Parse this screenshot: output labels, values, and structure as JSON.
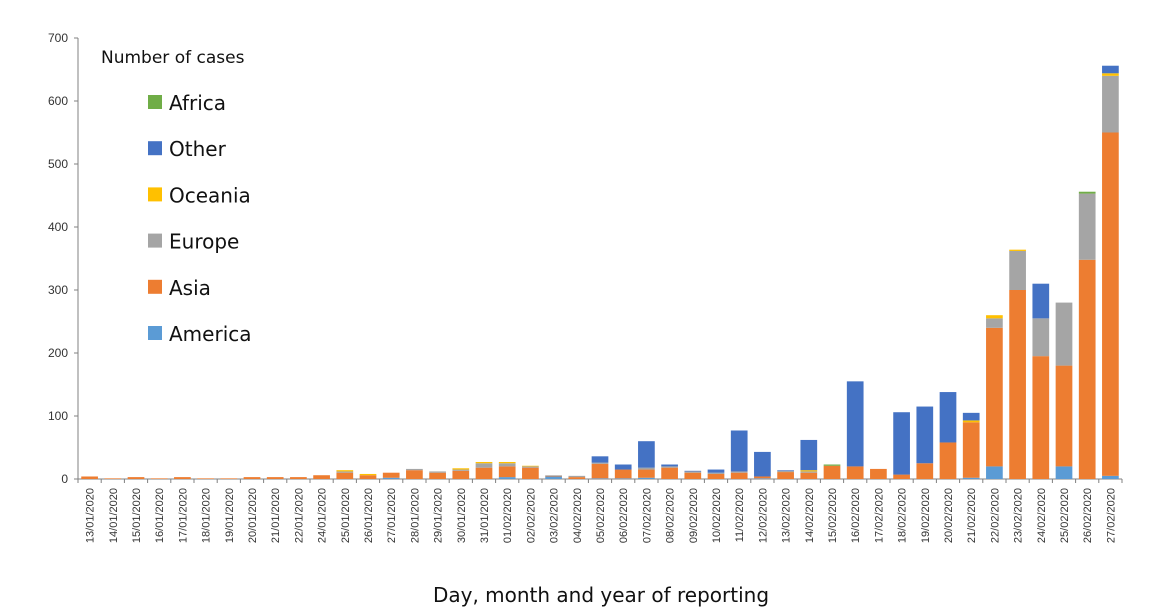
{
  "chart_data": {
    "type": "bar",
    "stacked": true,
    "xlabel": "Day, month and year of reporting",
    "legend_title": "Number of cases",
    "ylim": [
      0,
      700
    ],
    "yticks": [
      0,
      100,
      200,
      300,
      400,
      500,
      600,
      700
    ],
    "grid": false,
    "legend_placement": "top-left",
    "categories": [
      "13/01/2020",
      "14/01/2020",
      "15/01/2020",
      "16/01/2020",
      "17/01/2020",
      "18/01/2020",
      "19/01/2020",
      "20/01/2020",
      "21/01/2020",
      "22/01/2020",
      "24/01/2020",
      "25/01/2020",
      "26/01/2020",
      "27/01/2020",
      "28/01/2020",
      "29/01/2020",
      "30/01/2020",
      "31/01/2020",
      "01/02/2020",
      "02/02/2020",
      "03/02/2020",
      "04/02/2020",
      "05/02/2020",
      "06/02/2020",
      "07/02/2020",
      "08/02/2020",
      "09/02/2020",
      "10/02/2020",
      "11/02/2020",
      "12/02/2020",
      "13/02/2020",
      "14/02/2020",
      "15/02/2020",
      "16/02/2020",
      "17/02/2020",
      "18/02/2020",
      "19/02/2020",
      "20/02/2020",
      "21/02/2020",
      "22/02/2020",
      "23/02/2020",
      "24/02/2020",
      "25/02/2020",
      "26/02/2020",
      "27/02/2020"
    ],
    "series": [
      {
        "name": "America",
        "color": "#5B9BD5",
        "values": [
          0,
          0,
          0,
          0,
          0,
          0,
          0,
          0,
          0,
          0,
          0,
          0,
          0,
          2,
          0,
          0,
          0,
          0,
          3,
          0,
          4,
          0,
          1,
          1,
          2,
          0,
          0,
          0,
          0,
          1,
          0,
          0,
          0,
          0,
          0,
          0,
          0,
          0,
          2,
          20,
          0,
          0,
          20,
          0,
          5
        ]
      },
      {
        "name": "Asia",
        "color": "#ED7D31",
        "values": [
          4,
          1,
          3,
          1,
          3,
          1,
          1,
          3,
          3,
          3,
          6,
          10,
          6,
          8,
          14,
          10,
          13,
          18,
          17,
          18,
          1,
          3,
          23,
          14,
          13,
          18,
          10,
          8,
          10,
          3,
          11,
          10,
          21,
          20,
          16,
          7,
          25,
          58,
          88,
          220,
          300,
          195,
          160,
          348,
          545
        ]
      },
      {
        "name": "Europe",
        "color": "#A5A5A5",
        "values": [
          0,
          0,
          0,
          0,
          0,
          0,
          0,
          0,
          0,
          0,
          0,
          2,
          0,
          0,
          2,
          2,
          2,
          7,
          5,
          2,
          1,
          2,
          2,
          0,
          3,
          2,
          2,
          2,
          2,
          0,
          2,
          2,
          0,
          0,
          0,
          0,
          0,
          0,
          0,
          15,
          62,
          60,
          100,
          105,
          90
        ]
      },
      {
        "name": "Oceania",
        "color": "#FFC000",
        "values": [
          0,
          0,
          0,
          0,
          0,
          0,
          0,
          0,
          0,
          0,
          0,
          2,
          2,
          0,
          0,
          0,
          2,
          2,
          2,
          1,
          0,
          0,
          0,
          0,
          0,
          0,
          0,
          0,
          0,
          0,
          0,
          2,
          0,
          0,
          0,
          0,
          0,
          0,
          3,
          5,
          2,
          0,
          0,
          0,
          4
        ]
      },
      {
        "name": "Other",
        "color": "#4472C4",
        "values": [
          0,
          0,
          0,
          0,
          0,
          0,
          0,
          0,
          0,
          0,
          0,
          0,
          0,
          0,
          0,
          0,
          0,
          0,
          0,
          0,
          0,
          0,
          10,
          8,
          42,
          3,
          1,
          5,
          65,
          39,
          1,
          48,
          0,
          135,
          0,
          99,
          90,
          80,
          12,
          0,
          0,
          55,
          0,
          0,
          12
        ]
      },
      {
        "name": "Africa",
        "color": "#70AD47",
        "values": [
          0,
          0,
          0,
          0,
          0,
          0,
          0,
          0,
          0,
          0,
          0,
          0,
          0,
          0,
          0,
          0,
          0,
          0,
          0,
          0,
          0,
          0,
          0,
          0,
          0,
          0,
          0,
          0,
          0,
          0,
          0,
          0,
          2,
          0,
          0,
          0,
          0,
          0,
          0,
          0,
          0,
          0,
          0,
          3,
          0
        ]
      }
    ],
    "legend_order": [
      "Africa",
      "Other",
      "Oceania",
      "Europe",
      "Asia",
      "America"
    ]
  }
}
